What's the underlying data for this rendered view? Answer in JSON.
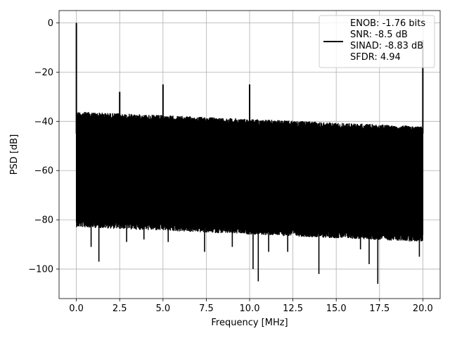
{
  "chart_data": {
    "type": "line",
    "xlabel": "Frequency [MHz]",
    "ylabel": "PSD [dB]",
    "xlim": [
      -1.0,
      21.0
    ],
    "ylim": [
      -112,
      5
    ],
    "xticks": [
      0.0,
      2.5,
      5.0,
      7.5,
      10.0,
      12.5,
      15.0,
      17.5,
      20.0
    ],
    "xtick_labels": [
      "0.0",
      "2.5",
      "5.0",
      "7.5",
      "10.0",
      "12.5",
      "15.0",
      "17.5",
      "20.0"
    ],
    "yticks": [
      0,
      -20,
      -40,
      -60,
      -80,
      -100
    ],
    "ytick_labels": [
      "0",
      "−20",
      "−40",
      "−60",
      "−80",
      "−100"
    ],
    "grid": true,
    "legend_position": "top-right",
    "series": [
      {
        "color": "#000000",
        "noise_band": {
          "x_start": 0.0,
          "x_end": 20.0,
          "upper_start": -36,
          "upper_end": -42,
          "typical_low_start": -80,
          "typical_low_end": -86
        },
        "spikes": [
          {
            "x": 0.0,
            "y": 0.0
          },
          {
            "x": 2.5,
            "y": -28
          },
          {
            "x": 5.0,
            "y": -25
          },
          {
            "x": 10.0,
            "y": -25
          },
          {
            "x": 20.0,
            "y": -7
          }
        ],
        "dips": [
          {
            "x": 0.85,
            "y": -91
          },
          {
            "x": 1.3,
            "y": -97
          },
          {
            "x": 2.9,
            "y": -89
          },
          {
            "x": 3.9,
            "y": -88
          },
          {
            "x": 5.3,
            "y": -89
          },
          {
            "x": 7.4,
            "y": -93
          },
          {
            "x": 9.0,
            "y": -91
          },
          {
            "x": 10.2,
            "y": -100
          },
          {
            "x": 10.5,
            "y": -105
          },
          {
            "x": 11.1,
            "y": -93
          },
          {
            "x": 12.2,
            "y": -93
          },
          {
            "x": 14.0,
            "y": -102
          },
          {
            "x": 16.4,
            "y": -92
          },
          {
            "x": 16.9,
            "y": -98
          },
          {
            "x": 17.4,
            "y": -106
          },
          {
            "x": 19.8,
            "y": -95
          }
        ]
      }
    ],
    "legend_entries": [
      "ENOB: -1.76 bits",
      "SNR: -8.5 dB",
      "SINAD: -8.83 dB",
      "SFDR: 4.94"
    ]
  }
}
